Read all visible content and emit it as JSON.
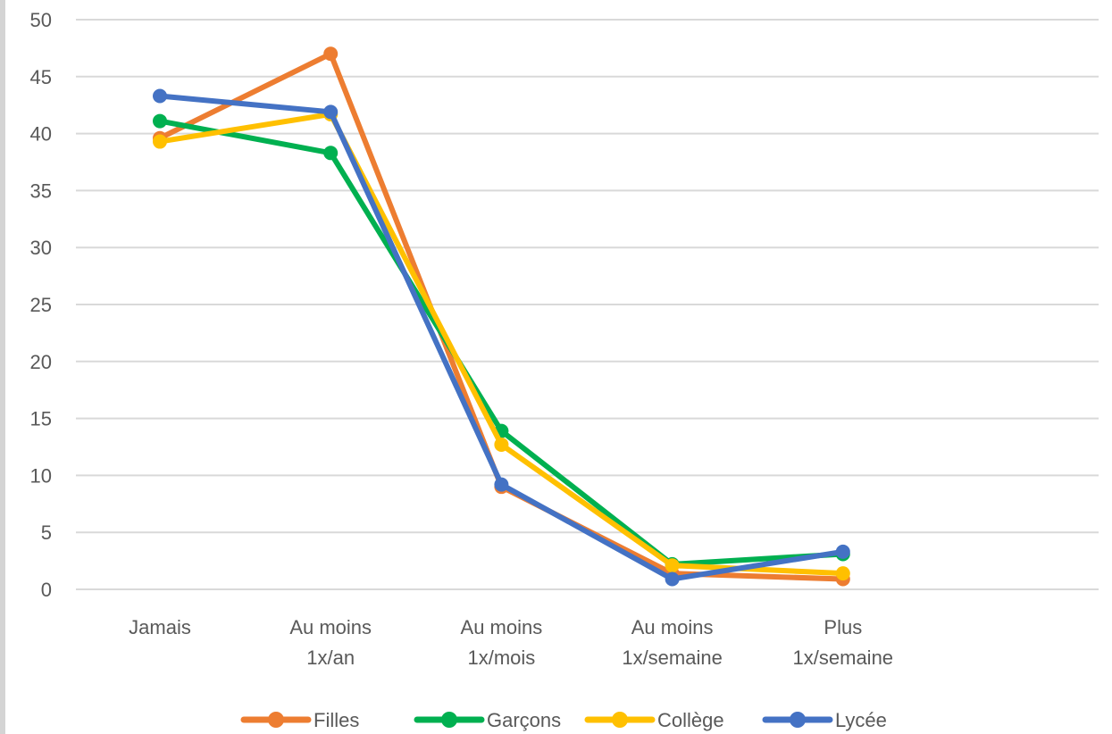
{
  "chart_data": {
    "type": "line",
    "title": "",
    "xlabel": "",
    "ylabel": "",
    "categories": [
      [
        "Jamais"
      ],
      [
        "Au moins",
        "1x/an"
      ],
      [
        "Au moins",
        "1x/mois"
      ],
      [
        "Au moins",
        "1x/semaine"
      ],
      [
        "Plus",
        "1x/semaine"
      ]
    ],
    "ylim": [
      0,
      50
    ],
    "yticks": [
      "0",
      "5",
      "10",
      "15",
      "20",
      "25",
      "30",
      "35",
      "40",
      "45",
      "50"
    ],
    "grid": true,
    "legend_position": "bottom",
    "series": [
      {
        "name": "Filles",
        "color": "#ed7d31",
        "values": [
          39.6,
          47.0,
          9.0,
          1.4,
          0.9
        ]
      },
      {
        "name": "Garçons",
        "color": "#00b050",
        "values": [
          41.1,
          38.3,
          13.9,
          2.2,
          3.1
        ]
      },
      {
        "name": "Collège",
        "color": "#ffc000",
        "values": [
          39.3,
          41.7,
          12.7,
          2.1,
          1.4
        ]
      },
      {
        "name": "Lycée",
        "color": "#4472c4",
        "values": [
          43.3,
          41.9,
          9.2,
          0.9,
          3.3
        ]
      }
    ]
  }
}
